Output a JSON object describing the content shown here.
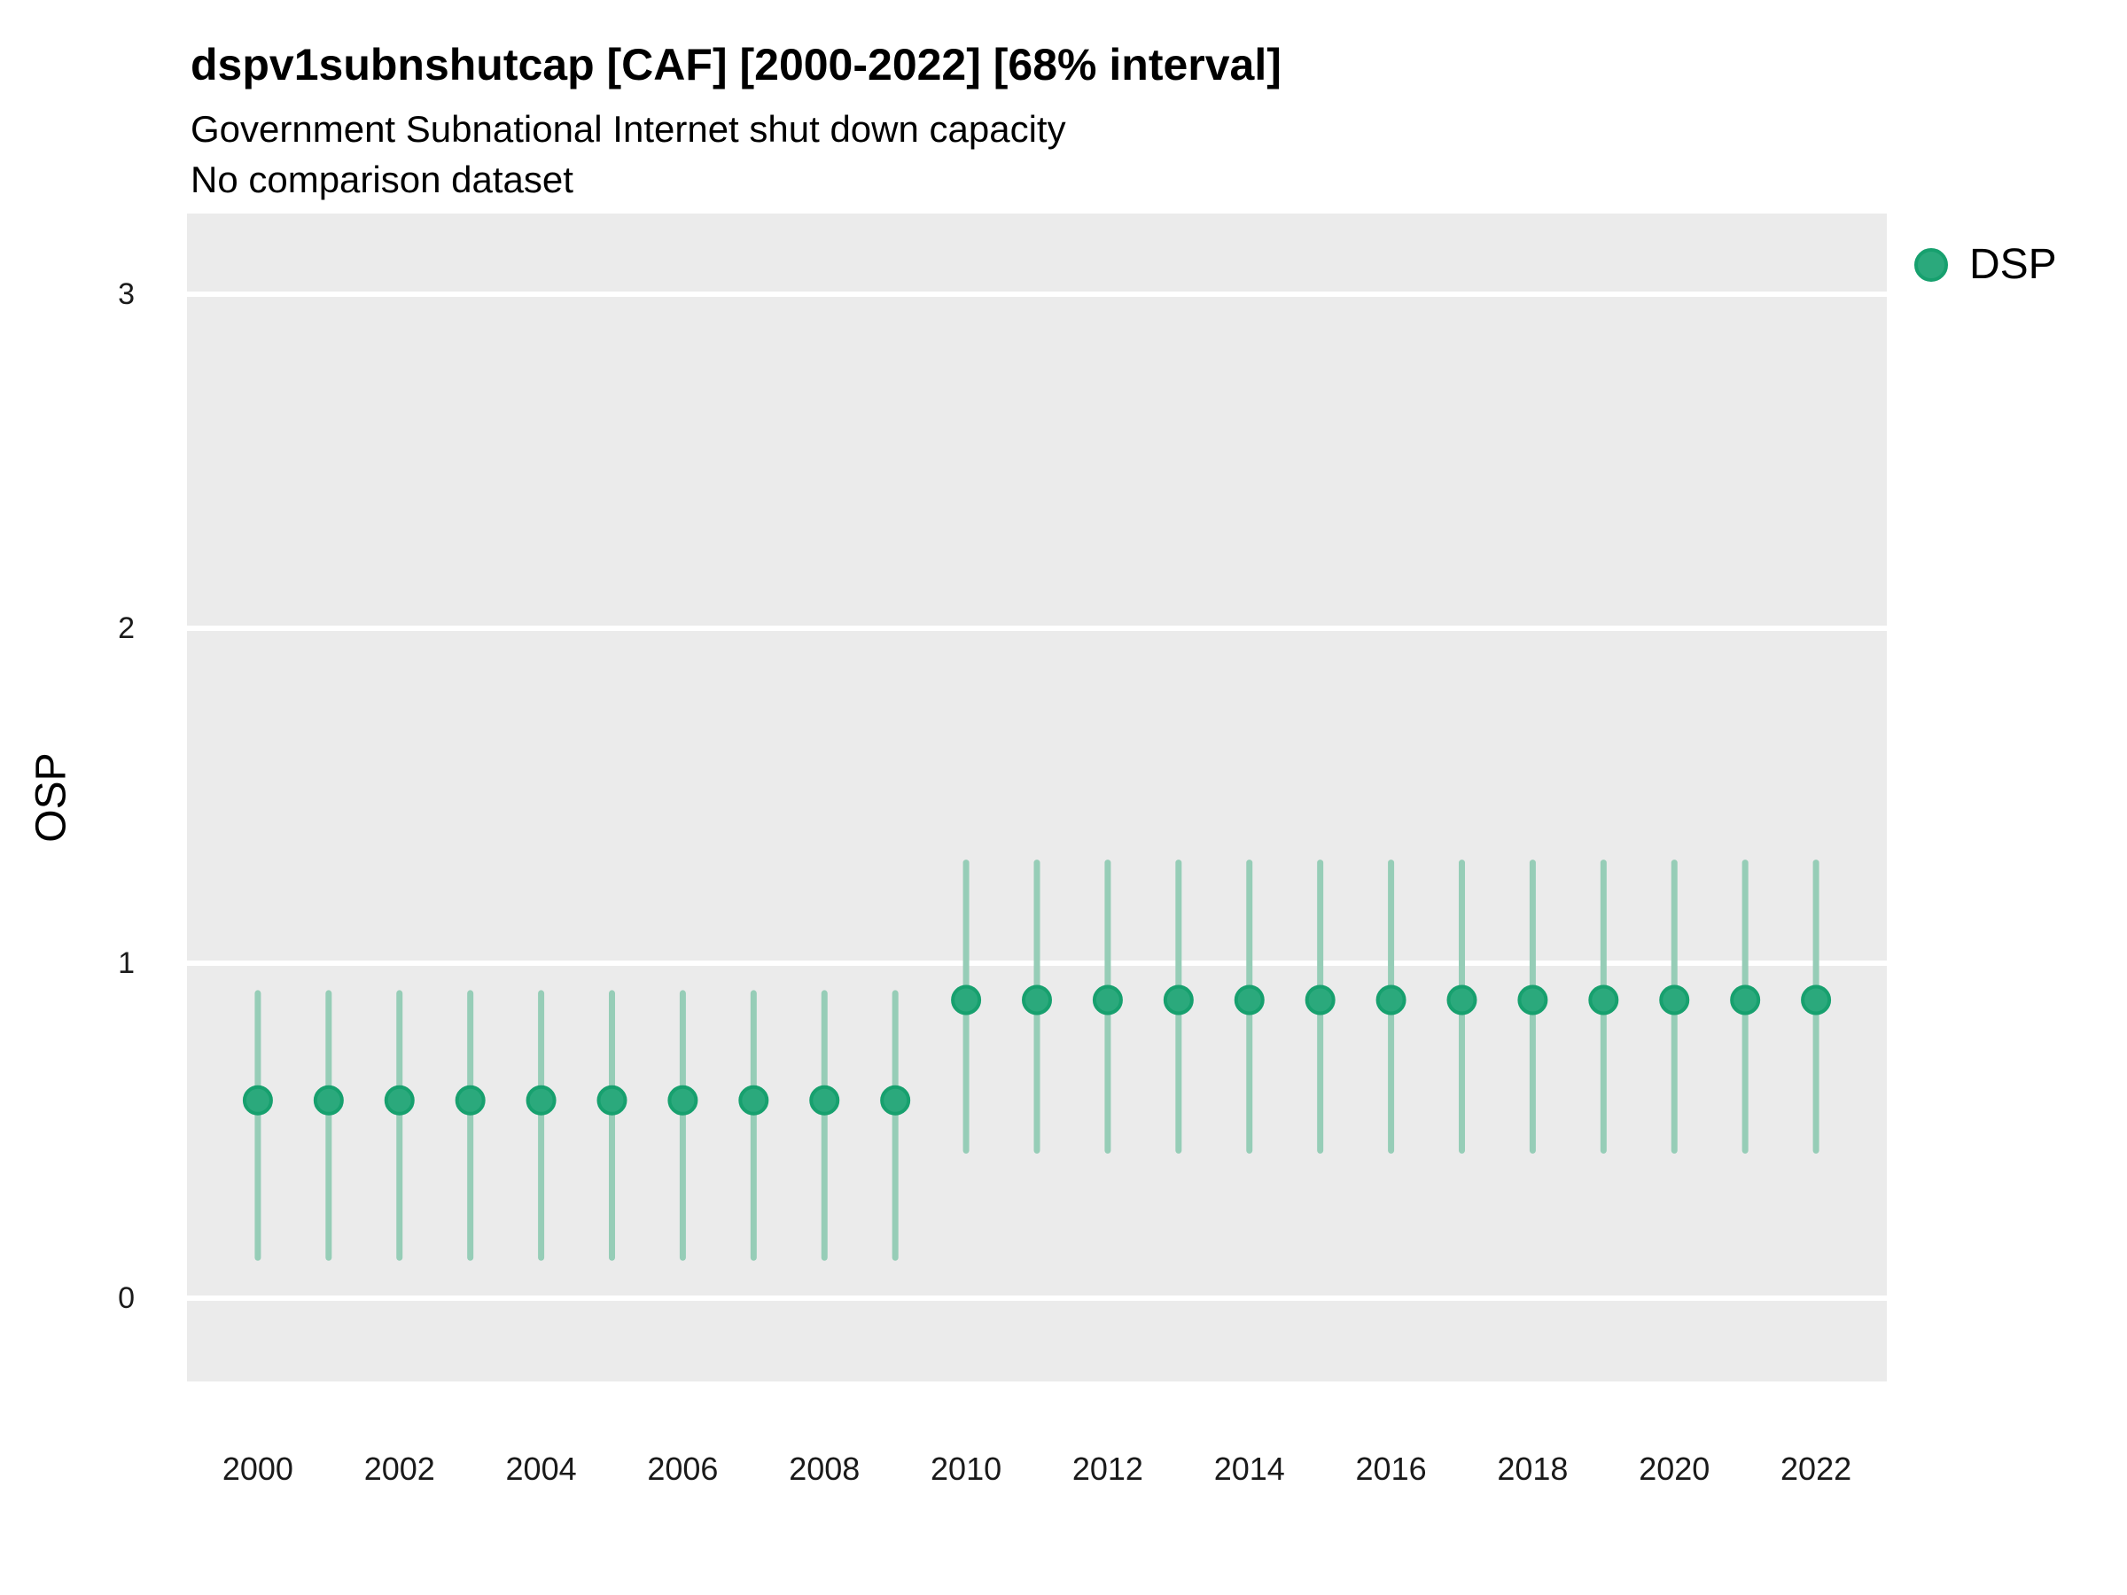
{
  "title": "dspv1subnshutcap [CAF] [2000-2022] [68% interval]",
  "subtitle": "Government Subnational Internet shut down capacity",
  "comparison_note": "No comparison dataset",
  "legend": {
    "label": "DSP"
  },
  "colors": {
    "point_fill": "#2ba97c",
    "point_stroke": "#17a06e",
    "interval_line": "#96cdb7",
    "panel_background": "#ebebeb",
    "gridline": "#ffffff",
    "text": "#000000"
  },
  "chart_data": {
    "type": "scatter",
    "subtype": "pointrange",
    "title": "dspv1subnshutcap [CAF] [2000-2022] [68% interval]",
    "subtitle": "Government Subnational Internet shut down capacity",
    "note": "No comparison dataset",
    "xlabel": "",
    "ylabel": "OSP",
    "interval_level": "68%",
    "country": "CAF",
    "grid": "major-horizontal",
    "legend_position": "right",
    "xlim": [
      1999,
      2023
    ],
    "ylim": [
      -0.25,
      3.24
    ],
    "x_ticks": [
      2000,
      2002,
      2004,
      2006,
      2008,
      2010,
      2012,
      2014,
      2016,
      2018,
      2020,
      2022
    ],
    "y_ticks": [
      0,
      1,
      2,
      3
    ],
    "series": [
      {
        "name": "DSP",
        "points": [
          {
            "year": 2000,
            "est": 0.59,
            "lo": 0.12,
            "hi": 0.91
          },
          {
            "year": 2001,
            "est": 0.59,
            "lo": 0.12,
            "hi": 0.91
          },
          {
            "year": 2002,
            "est": 0.59,
            "lo": 0.12,
            "hi": 0.91
          },
          {
            "year": 2003,
            "est": 0.59,
            "lo": 0.12,
            "hi": 0.91
          },
          {
            "year": 2004,
            "est": 0.59,
            "lo": 0.12,
            "hi": 0.91
          },
          {
            "year": 2005,
            "est": 0.59,
            "lo": 0.12,
            "hi": 0.91
          },
          {
            "year": 2006,
            "est": 0.59,
            "lo": 0.12,
            "hi": 0.91
          },
          {
            "year": 2007,
            "est": 0.59,
            "lo": 0.12,
            "hi": 0.91
          },
          {
            "year": 2008,
            "est": 0.59,
            "lo": 0.12,
            "hi": 0.91
          },
          {
            "year": 2009,
            "est": 0.59,
            "lo": 0.12,
            "hi": 0.91
          },
          {
            "year": 2010,
            "est": 0.89,
            "lo": 0.44,
            "hi": 1.3
          },
          {
            "year": 2011,
            "est": 0.89,
            "lo": 0.44,
            "hi": 1.3
          },
          {
            "year": 2012,
            "est": 0.89,
            "lo": 0.44,
            "hi": 1.3
          },
          {
            "year": 2013,
            "est": 0.89,
            "lo": 0.44,
            "hi": 1.3
          },
          {
            "year": 2014,
            "est": 0.89,
            "lo": 0.44,
            "hi": 1.3
          },
          {
            "year": 2015,
            "est": 0.89,
            "lo": 0.44,
            "hi": 1.3
          },
          {
            "year": 2016,
            "est": 0.89,
            "lo": 0.44,
            "hi": 1.3
          },
          {
            "year": 2017,
            "est": 0.89,
            "lo": 0.44,
            "hi": 1.3
          },
          {
            "year": 2018,
            "est": 0.89,
            "lo": 0.44,
            "hi": 1.3
          },
          {
            "year": 2019,
            "est": 0.89,
            "lo": 0.44,
            "hi": 1.3
          },
          {
            "year": 2020,
            "est": 0.89,
            "lo": 0.44,
            "hi": 1.3
          },
          {
            "year": 2021,
            "est": 0.89,
            "lo": 0.44,
            "hi": 1.3
          },
          {
            "year": 2022,
            "est": 0.89,
            "lo": 0.44,
            "hi": 1.3
          }
        ]
      }
    ]
  }
}
